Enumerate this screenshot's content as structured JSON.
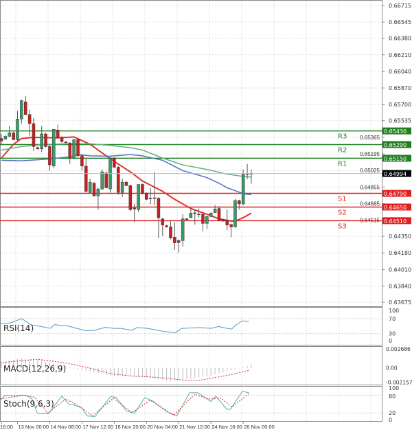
{
  "chart_data": [
    {
      "type": "candlestick",
      "title": "",
      "y_ticks": [
        "0.66715",
        "0.66545",
        "0.66380",
        "0.66210",
        "0.66040",
        "0.65870",
        "0.65700",
        "0.65535",
        "0.65365",
        "0.65195",
        "0.65025",
        "0.64855",
        "0.64685",
        "0.64515",
        "0.64350",
        "0.64180",
        "0.64010",
        "0.63840",
        "0.63675"
      ],
      "ylim": [
        0.63675,
        0.66715
      ],
      "grid": true,
      "x_ticks": [
        {
          "bar": 1,
          "label": "16:00"
        },
        {
          "bar": 5,
          "label": "13 Nov 00:00"
        },
        {
          "bar": 13,
          "label": "14 Nov 08:00"
        },
        {
          "bar": 21,
          "label": "17 Nov 12:00"
        },
        {
          "bar": 29,
          "label": "18 Nov 20:00"
        },
        {
          "bar": 37,
          "label": "20 Nov 04:00"
        },
        {
          "bar": 45,
          "label": "21 Nov 12:00"
        },
        {
          "bar": 53,
          "label": "24 Nov 16:00"
        },
        {
          "bar": 61,
          "label": "26 Nov 00:00"
        }
      ],
      "candles_ohlc": [
        [
          0.65352,
          0.65399,
          0.65293,
          0.65328
        ],
        [
          0.65345,
          0.65387,
          0.6534,
          0.65375
        ],
        [
          0.65375,
          0.65481,
          0.65364,
          0.65411
        ],
        [
          0.65411,
          0.6542,
          0.65335,
          0.6534
        ],
        [
          0.6534,
          0.65634,
          0.65328,
          0.65552
        ],
        [
          0.65552,
          0.65751,
          0.65505,
          0.6574
        ],
        [
          0.65728,
          0.65786,
          0.6559,
          0.65598
        ],
        [
          0.65598,
          0.65645,
          0.65375,
          0.65505
        ],
        [
          0.65505,
          0.65563,
          0.65223,
          0.6527
        ],
        [
          0.65258,
          0.6527,
          0.6524,
          0.65246
        ],
        [
          0.65246,
          0.65481,
          0.65211,
          0.65399
        ],
        [
          0.65399,
          0.6541,
          0.6526,
          0.6527
        ],
        [
          0.6527,
          0.6529,
          0.65023,
          0.65082
        ],
        [
          0.6507,
          0.6545,
          0.65046,
          0.65446
        ],
        [
          0.65439,
          0.65493,
          0.6535,
          0.65364
        ],
        [
          0.65364,
          0.65375,
          0.6531,
          0.65321
        ],
        [
          0.65317,
          0.65325,
          0.653,
          0.6531
        ],
        [
          0.65305,
          0.65317,
          0.65093,
          0.65152
        ],
        [
          0.65152,
          0.6535,
          0.6514,
          0.6534
        ],
        [
          0.6534,
          0.6535,
          0.6516,
          0.65175
        ],
        [
          0.65175,
          0.6519,
          0.65023,
          0.6507
        ],
        [
          0.6507,
          0.65152,
          0.648,
          0.64811
        ],
        [
          0.648,
          0.64941,
          0.6479,
          0.64905
        ],
        [
          0.64894,
          0.64905,
          0.6476,
          0.64764
        ],
        [
          0.64764,
          0.64847,
          0.64623,
          0.64835
        ],
        [
          0.64835,
          0.65035,
          0.6483,
          0.65011
        ],
        [
          0.64999,
          0.65011,
          0.6484,
          0.64847
        ],
        [
          0.64835,
          0.65164,
          0.648,
          0.65152
        ],
        [
          0.65152,
          0.6516,
          0.6505,
          0.65058
        ],
        [
          0.65058,
          0.6507,
          0.64776,
          0.648
        ],
        [
          0.648,
          0.64941,
          0.64752,
          0.64905
        ],
        [
          0.64905,
          0.6492,
          0.64865,
          0.6487
        ],
        [
          0.6487,
          0.6488,
          0.6461,
          0.64623
        ],
        [
          0.6464,
          0.64682,
          0.64494,
          0.6463
        ],
        [
          0.64623,
          0.64882,
          0.646,
          0.64882
        ],
        [
          0.64882,
          0.6489,
          0.6478,
          0.64788
        ],
        [
          0.64788,
          0.648,
          0.6472,
          0.64729
        ],
        [
          0.6474,
          0.64847,
          0.64682,
          0.64734
        ],
        [
          0.64745,
          0.65011,
          0.6467,
          0.64741
        ],
        [
          0.64741,
          0.6475,
          0.6433,
          0.64541
        ],
        [
          0.64529,
          0.6454,
          0.64353,
          0.64466
        ],
        [
          0.64459,
          0.6447,
          0.6444,
          0.64447
        ],
        [
          0.64447,
          0.64506,
          0.6432,
          0.64334
        ],
        [
          0.64341,
          0.64494,
          0.64212,
          0.64283
        ],
        [
          0.64306,
          0.6432,
          0.64184,
          0.64287
        ],
        [
          0.64306,
          0.64576,
          0.64247,
          0.64529
        ],
        [
          0.64529,
          0.6454,
          0.64515,
          0.64524
        ],
        [
          0.64541,
          0.6463,
          0.64535,
          0.64588
        ],
        [
          0.6459,
          0.64623,
          0.64471,
          0.64585
        ],
        [
          0.64578,
          0.64635,
          0.64541,
          0.64574
        ],
        [
          0.64576,
          0.6459,
          0.644,
          0.64482
        ],
        [
          0.64482,
          0.6456,
          0.64424,
          0.64553
        ],
        [
          0.64553,
          0.64595,
          0.64545,
          0.64588
        ],
        [
          0.64593,
          0.6467,
          0.6459,
          0.6463
        ],
        [
          0.64635,
          0.64658,
          0.64505,
          0.64513
        ],
        [
          0.64522,
          0.6453,
          0.645,
          0.64506
        ],
        [
          0.64517,
          0.64623,
          0.64412,
          0.64466
        ],
        [
          0.64471,
          0.6448,
          0.64341,
          0.64447
        ],
        [
          0.64447,
          0.64734,
          0.6444,
          0.64717
        ],
        [
          0.64717,
          0.64725,
          0.64623,
          0.64682
        ],
        [
          0.64682,
          0.65035,
          0.6467,
          0.64987
        ],
        [
          0.6499,
          0.65093,
          0.64936,
          0.64985
        ],
        [
          0.64992,
          0.65035,
          0.64889,
          0.64994
        ]
      ],
      "moving_averages": [
        {
          "color": "#e03030",
          "points": [
            [
              1,
              0.65152
            ],
            [
              4,
              0.65293
            ],
            [
              6,
              0.65352
            ],
            [
              9,
              0.65364
            ],
            [
              15,
              0.65359
            ],
            [
              19,
              0.65368
            ],
            [
              23,
              0.65293
            ],
            [
              27,
              0.65175
            ],
            [
              29,
              0.65117
            ],
            [
              33,
              0.65011
            ],
            [
              36,
              0.64917
            ],
            [
              41,
              0.64811
            ],
            [
              44,
              0.64729
            ],
            [
              48,
              0.64635
            ],
            [
              52,
              0.64576
            ],
            [
              55,
              0.64529
            ],
            [
              58,
              0.64506
            ],
            [
              59,
              0.64506
            ],
            [
              61,
              0.64541
            ],
            [
              63,
              0.64588
            ]
          ]
        },
        {
          "color": "#5070c8",
          "points": [
            [
              1,
              0.65129
            ],
            [
              6,
              0.65124
            ],
            [
              12,
              0.6514
            ],
            [
              18,
              0.65164
            ],
            [
              20,
              0.65187
            ],
            [
              23,
              0.65175
            ],
            [
              28,
              0.65171
            ],
            [
              33,
              0.65187
            ],
            [
              36,
              0.65175
            ],
            [
              41,
              0.65129
            ],
            [
              46,
              0.65023
            ],
            [
              52,
              0.64952
            ],
            [
              55,
              0.64894
            ],
            [
              57,
              0.64847
            ],
            [
              61,
              0.64788
            ],
            [
              63,
              0.64776
            ]
          ]
        },
        {
          "color": "#60b080",
          "points": [
            [
              1,
              0.65234
            ],
            [
              6,
              0.6527
            ],
            [
              12,
              0.65293
            ],
            [
              18,
              0.65298
            ],
            [
              23,
              0.65298
            ],
            [
              28,
              0.65281
            ],
            [
              33,
              0.65258
            ],
            [
              36,
              0.65234
            ],
            [
              41,
              0.65152
            ],
            [
              46,
              0.65082
            ],
            [
              52,
              0.65035
            ],
            [
              57,
              0.64987
            ],
            [
              61,
              0.64964
            ],
            [
              63,
              0.64957
            ]
          ]
        }
      ],
      "levels": [
        {
          "name": "R3",
          "value": "0.65430",
          "color": "#208020"
        },
        {
          "name": "R2",
          "value": "0.65290",
          "color": "#208020"
        },
        {
          "name": "R1",
          "value": "0.65150",
          "color": "#208020"
        },
        {
          "name": "S1",
          "value": "0.64790",
          "color": "#e02020"
        },
        {
          "name": "S2",
          "value": "0.64650",
          "color": "#e02020"
        },
        {
          "name": "S3",
          "value": "0.64510",
          "color": "#e02020"
        }
      ],
      "current_price": "0.64994"
    },
    {
      "type": "line",
      "label": "RSI(14)",
      "y_ticks": [
        "100",
        "70",
        "30",
        "0"
      ],
      "ylim": [
        0,
        100
      ],
      "color": "#4a9ac8",
      "points": [
        [
          0.7,
          56
        ],
        [
          3.3,
          59
        ],
        [
          6,
          70
        ],
        [
          8.5,
          53
        ],
        [
          10.4,
          50
        ],
        [
          13.1,
          44
        ],
        [
          14.2,
          54
        ],
        [
          17.7,
          50
        ],
        [
          19,
          46
        ],
        [
          22,
          37.5
        ],
        [
          24.2,
          39
        ],
        [
          26.8,
          47
        ],
        [
          28.8,
          44
        ],
        [
          30.7,
          44
        ],
        [
          33.4,
          39
        ],
        [
          34.6,
          46
        ],
        [
          37.3,
          44
        ],
        [
          41.3,
          35.6
        ],
        [
          44.2,
          32.5
        ],
        [
          45.7,
          44
        ],
        [
          50.3,
          46
        ],
        [
          53,
          44
        ],
        [
          54.9,
          49
        ],
        [
          57,
          44
        ],
        [
          58.1,
          42
        ],
        [
          59.2,
          53
        ],
        [
          60.7,
          64
        ],
        [
          62.4,
          62.5
        ]
      ]
    },
    {
      "type": "bar+line",
      "label": "MACD(12,26,9)",
      "y_ticks": [
        "0.002686",
        "0.00",
        "-0.002157"
      ],
      "ylim": [
        -0.002157,
        0.002686
      ],
      "histogram": [
        [
          0.7,
          0.0007
        ],
        [
          5.9,
          0.0014
        ],
        [
          10.5,
          0.00105
        ],
        [
          17,
          0.00023
        ],
        [
          21.6,
          -0.00043
        ],
        [
          28.1,
          -0.00108
        ],
        [
          36,
          -0.00125
        ],
        [
          43.1,
          -0.0019
        ],
        [
          47.7,
          -0.00157
        ],
        [
          52.9,
          -0.00108
        ],
        [
          57.5,
          -0.00043
        ],
        [
          60.8,
          7e-05
        ],
        [
          63,
          0.00049
        ]
      ],
      "signal": [
        [
          0.7,
          0.00072
        ],
        [
          4.6,
          0.00095
        ],
        [
          9.9,
          0.00121
        ],
        [
          13.8,
          0.00095
        ],
        [
          17.7,
          0.00062
        ],
        [
          22.3,
          7e-05
        ],
        [
          28.1,
          -0.00082
        ],
        [
          33.4,
          -0.00115
        ],
        [
          37.3,
          -0.00125
        ],
        [
          42.5,
          -0.00148
        ],
        [
          46.4,
          -0.00174
        ],
        [
          50.3,
          -0.00174
        ],
        [
          54.2,
          -0.00134
        ],
        [
          58.2,
          -0.00092
        ],
        [
          62.4,
          -0.00036
        ]
      ]
    },
    {
      "type": "line",
      "label": "Stoch(9,6,3)",
      "y_ticks": [
        "100",
        "80",
        "20",
        "0"
      ],
      "ylim": [
        0,
        100
      ],
      "main": [
        [
          0.7,
          63
        ],
        [
          2,
          80
        ],
        [
          4,
          77
        ],
        [
          6,
          80
        ],
        [
          7.2,
          79
        ],
        [
          8.6,
          67
        ],
        [
          9.9,
          20
        ],
        [
          11.2,
          17
        ],
        [
          12.8,
          19
        ],
        [
          16,
          77
        ],
        [
          17.7,
          50
        ],
        [
          19,
          47
        ],
        [
          21,
          37
        ],
        [
          22.3,
          10
        ],
        [
          24.2,
          8
        ],
        [
          28.1,
          75
        ],
        [
          29.4,
          73
        ],
        [
          32,
          27
        ],
        [
          34,
          19
        ],
        [
          36.6,
          72
        ],
        [
          38.6,
          60
        ],
        [
          42.5,
          20
        ],
        [
          44.5,
          10
        ],
        [
          47.7,
          88
        ],
        [
          49.7,
          88
        ],
        [
          53,
          59
        ],
        [
          54.2,
          77
        ],
        [
          56.9,
          33
        ],
        [
          57.8,
          32
        ],
        [
          60.8,
          93
        ],
        [
          62.4,
          88
        ]
      ],
      "signal": [
        [
          0.7,
          67
        ],
        [
          6.6,
          80
        ],
        [
          9.2,
          73
        ],
        [
          12.5,
          20
        ],
        [
          17,
          67
        ],
        [
          20.3,
          43
        ],
        [
          23.6,
          10
        ],
        [
          28.8,
          70
        ],
        [
          33.4,
          21
        ],
        [
          37.9,
          63
        ],
        [
          43.8,
          13
        ],
        [
          49,
          83
        ],
        [
          52.3,
          67
        ],
        [
          55.5,
          70
        ],
        [
          58.2,
          40
        ],
        [
          62.4,
          85
        ]
      ]
    }
  ]
}
